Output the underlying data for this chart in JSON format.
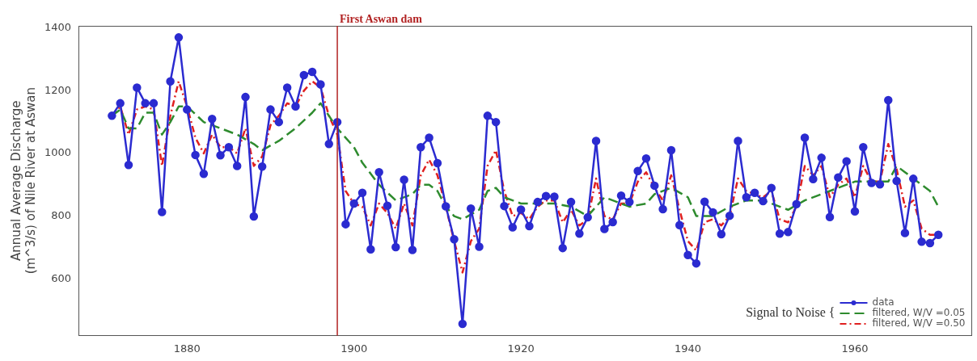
{
  "chart_data": {
    "type": "line",
    "ylabel": "Annual Average Discharge (m^3/s) of Nile River at Aswan",
    "x": [
      1871,
      1872,
      1873,
      1874,
      1875,
      1876,
      1877,
      1878,
      1879,
      1880,
      1881,
      1882,
      1883,
      1884,
      1885,
      1886,
      1887,
      1888,
      1889,
      1890,
      1891,
      1892,
      1893,
      1894,
      1895,
      1896,
      1897,
      1898,
      1899,
      1900,
      1901,
      1902,
      1903,
      1904,
      1905,
      1906,
      1907,
      1908,
      1909,
      1910,
      1911,
      1912,
      1913,
      1914,
      1915,
      1916,
      1917,
      1918,
      1919,
      1920,
      1921,
      1922,
      1923,
      1924,
      1925,
      1926,
      1927,
      1928,
      1929,
      1930,
      1931,
      1932,
      1933,
      1934,
      1935,
      1936,
      1937,
      1938,
      1939,
      1940,
      1941,
      1942,
      1943,
      1944,
      1945,
      1946,
      1947,
      1948,
      1949,
      1950,
      1951,
      1952,
      1953,
      1954,
      1955,
      1956,
      1957,
      1958,
      1959,
      1960,
      1961,
      1962,
      1963,
      1964,
      1965,
      1966,
      1967,
      1968,
      1969,
      1970
    ],
    "series": [
      {
        "name": "data",
        "color": "#2b2bd0",
        "marker": "circle",
        "line_style": "solid",
        "values": [
          1120,
          1160,
          963,
          1210,
          1160,
          1160,
          813,
          1230,
          1370,
          1140,
          995,
          935,
          1110,
          994,
          1020,
          960,
          1180,
          799,
          958,
          1140,
          1100,
          1210,
          1150,
          1250,
          1260,
          1220,
          1030,
          1100,
          774,
          840,
          874,
          694,
          940,
          833,
          701,
          916,
          692,
          1020,
          1050,
          969,
          831,
          726,
          456,
          824,
          702,
          1120,
          1100,
          832,
          764,
          821,
          768,
          845,
          864,
          862,
          698,
          845,
          744,
          796,
          1040,
          759,
          781,
          865,
          845,
          944,
          984,
          897,
          822,
          1010,
          771,
          676,
          649,
          846,
          812,
          742,
          801,
          1040,
          860,
          874,
          848,
          890,
          744,
          749,
          838,
          1050,
          918,
          986,
          797,
          923,
          975,
          815,
          1020,
          906,
          901,
          1170,
          912,
          746,
          919,
          718,
          714,
          740
        ]
      },
      {
        "name": "filtered, W/V =0.05",
        "color": "#2e8b2e",
        "marker": "none",
        "line_style": "dashed",
        "x": [
          1871,
          1872,
          1873,
          1874,
          1875,
          1876,
          1877,
          1878,
          1879,
          1880,
          1882,
          1884,
          1886,
          1888,
          1889,
          1891,
          1893,
          1895,
          1896,
          1897,
          1898,
          1900,
          1901,
          1903,
          1905,
          1907,
          1908,
          1909,
          1910,
          1911,
          1912,
          1913,
          1915,
          1916,
          1917,
          1918,
          1920,
          1922,
          1924,
          1926,
          1928,
          1929,
          1930,
          1932,
          1933,
          1935,
          1936,
          1938,
          1940,
          1941,
          1943,
          1945,
          1947,
          1949,
          1951,
          1952,
          1954,
          1956,
          1958,
          1960,
          1962,
          1964,
          1965,
          1966,
          1967,
          1969,
          1970
        ],
        "values": [
          1120,
          1140,
          1080,
          1080,
          1130,
          1130,
          1060,
          1100,
          1150,
          1150,
          1100,
          1080,
          1060,
          1030,
          1010,
          1040,
          1080,
          1130,
          1160,
          1120,
          1080,
          1020,
          970,
          900,
          850,
          870,
          900,
          900,
          880,
          830,
          800,
          790,
          820,
          880,
          890,
          860,
          840,
          840,
          840,
          830,
          800,
          830,
          860,
          840,
          830,
          840,
          870,
          890,
          860,
          800,
          800,
          830,
          850,
          850,
          830,
          820,
          850,
          870,
          890,
          910,
          910,
          910,
          960,
          940,
          920,
          880,
          830
        ]
      },
      {
        "name": "filtered, W/V =0.50",
        "color": "#e02020",
        "marker": "none",
        "line_style": "dotted",
        "values": [
          1120,
          1150,
          1060,
          1140,
          1150,
          1140,
          960,
          1120,
          1230,
          1150,
          1050,
          1000,
          1060,
          1020,
          1020,
          1000,
          1080,
          960,
          990,
          1090,
          1120,
          1160,
          1150,
          1200,
          1230,
          1210,
          1120,
          1060,
          880,
          840,
          830,
          770,
          840,
          810,
          760,
          840,
          770,
          930,
          980,
          930,
          830,
          720,
          620,
          720,
          760,
          960,
          1010,
          880,
          800,
          810,
          790,
          830,
          850,
          850,
          780,
          820,
          770,
          790,
          920,
          800,
          790,
          840,
          840,
          910,
          940,
          890,
          850,
          930,
          820,
          720,
          690,
          780,
          790,
          770,
          800,
          920,
          880,
          870,
          860,
          880,
          790,
          780,
          830,
          960,
          930,
          960,
          860,
          900,
          920,
          860,
          960,
          910,
          910,
          1030,
          950,
          830,
          850,
          760,
          740,
          740
        ]
      }
    ],
    "xlim": [
      1867,
      1974
    ],
    "xticks": [
      1880,
      1900,
      1920,
      1940,
      1960
    ],
    "ylim": [
      419,
      1407
    ],
    "yticks": [
      600,
      800,
      1000,
      1200,
      1400
    ],
    "ref_lines": [
      {
        "axis": "x",
        "value": 1898,
        "label": "First Aswan dam",
        "color": "#b22222"
      }
    ],
    "legend": "bottom right",
    "legend_title": "Signal to Noise {",
    "grid": false
  }
}
